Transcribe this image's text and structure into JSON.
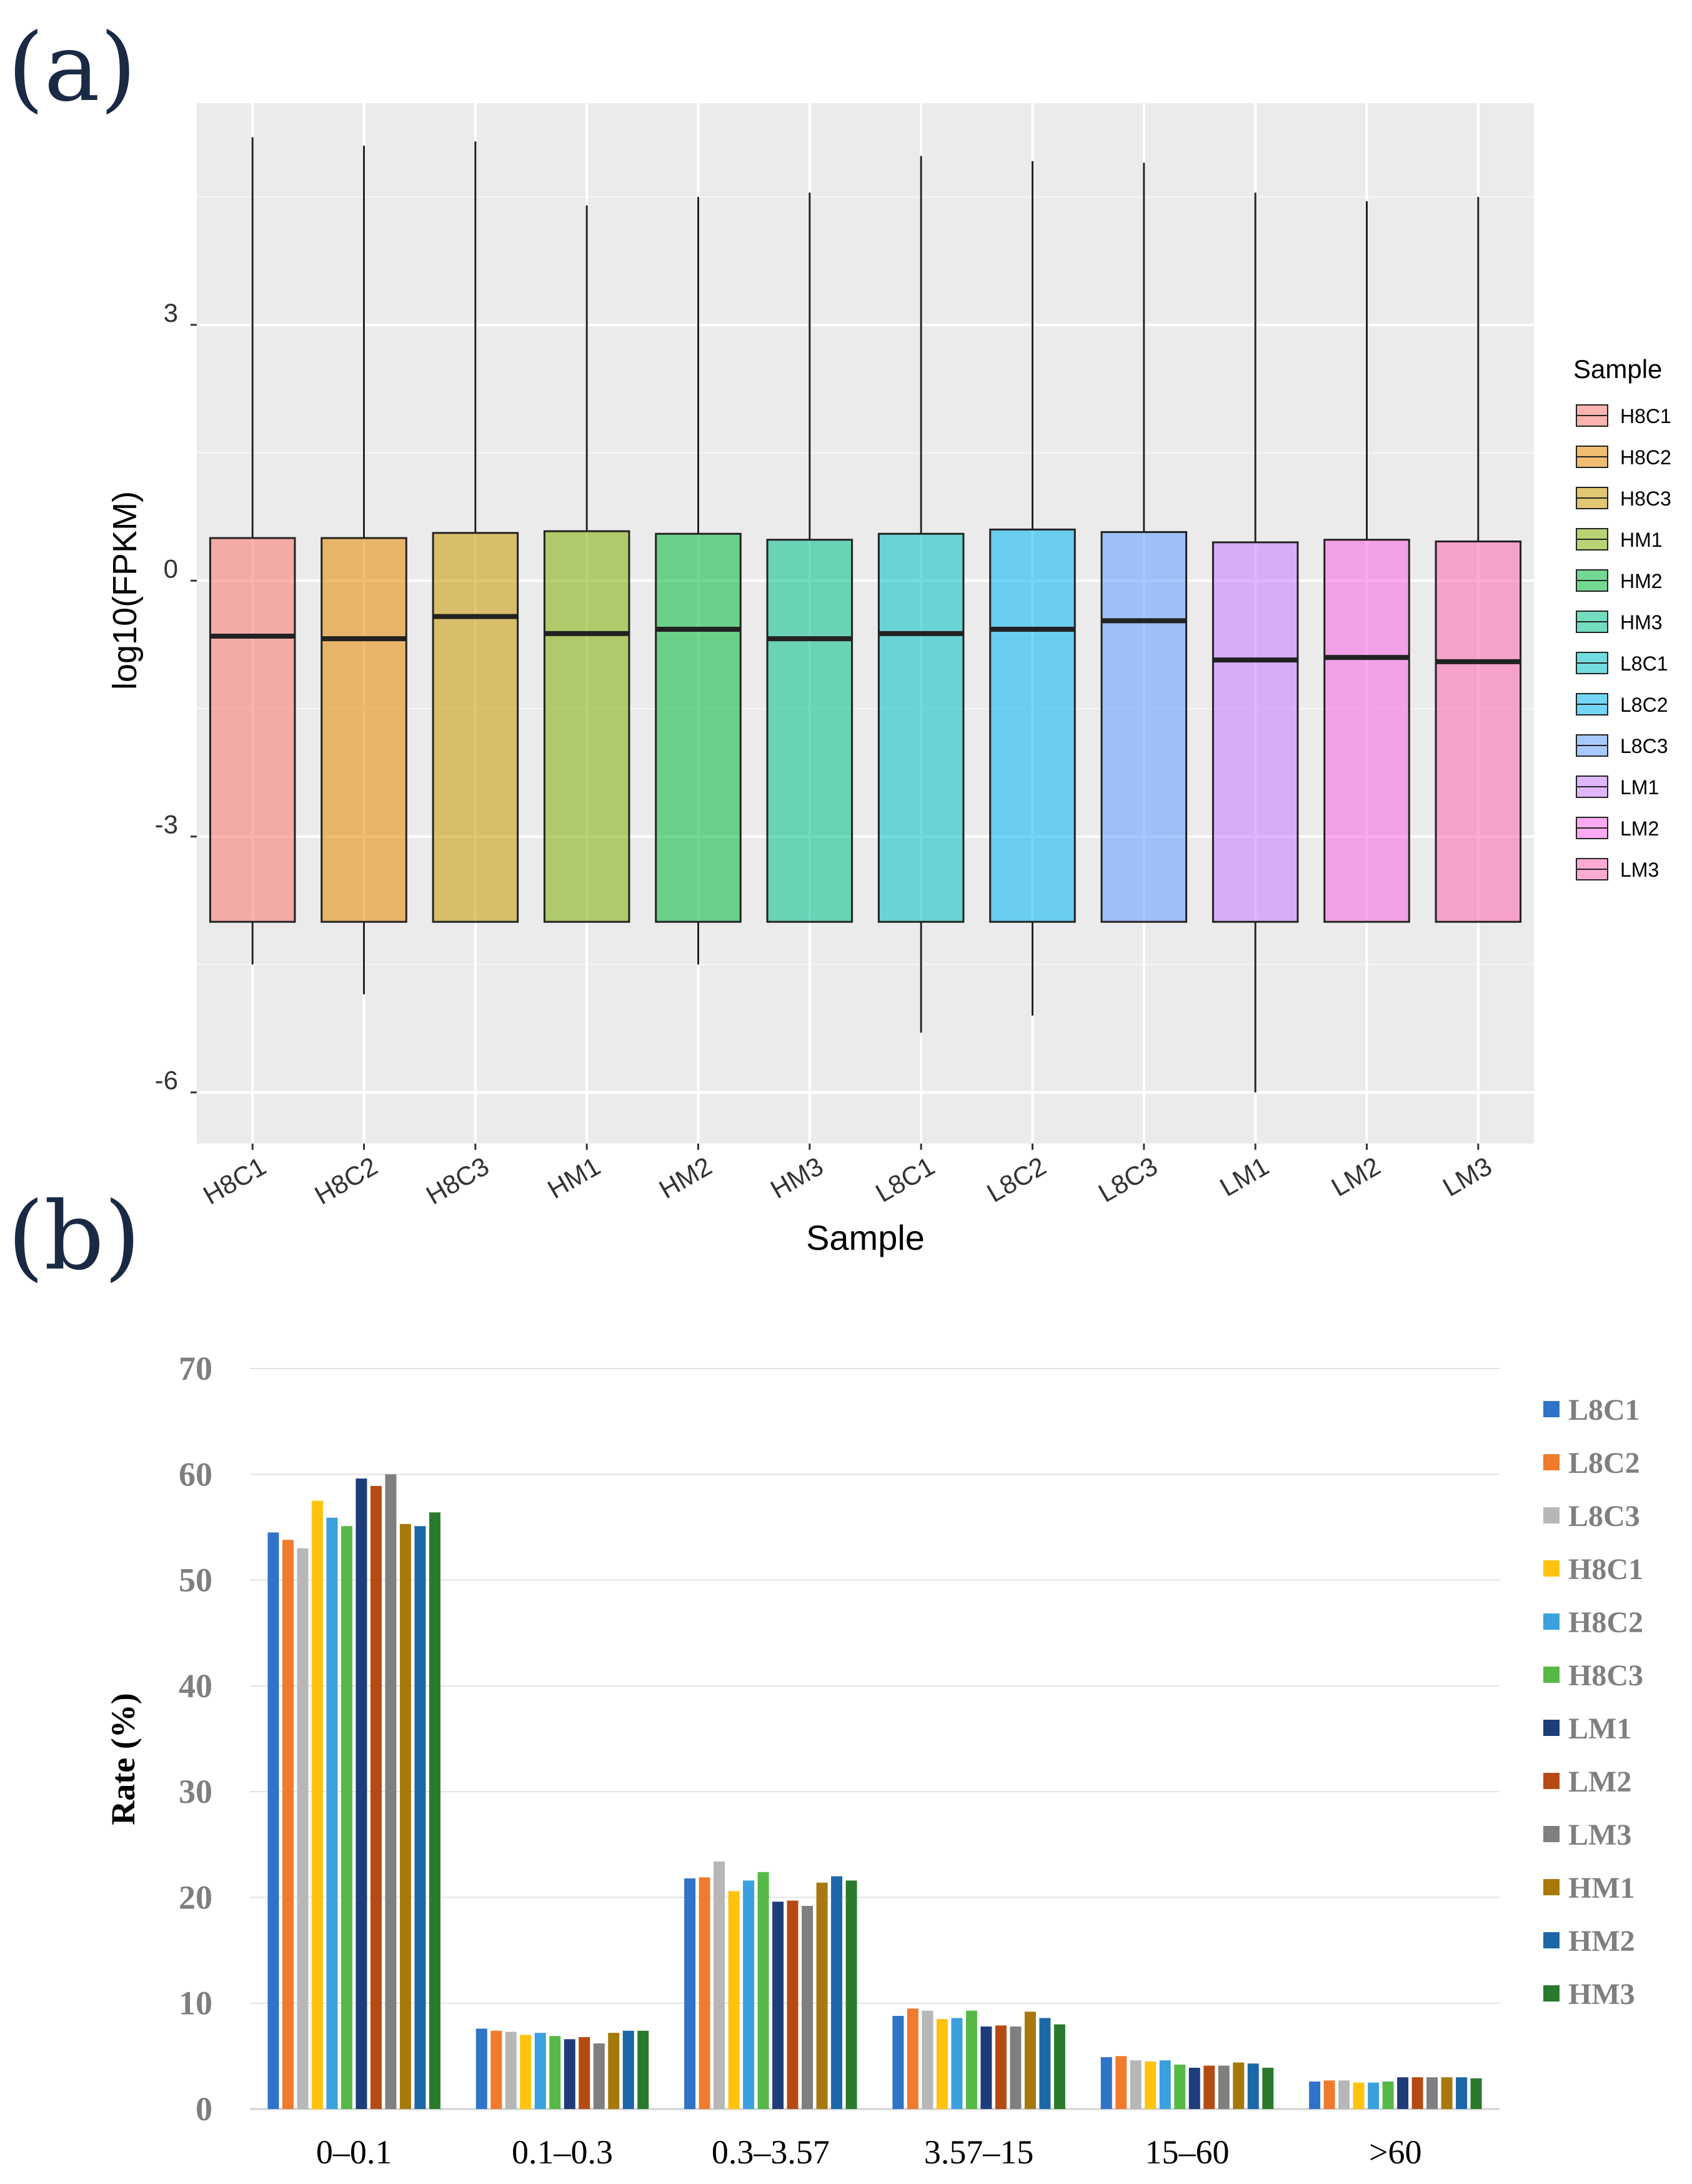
{
  "chart_data": [
    {
      "panel_label": "(a)",
      "type": "box",
      "xlabel": "Sample",
      "ylabel": "log10(FPKM)",
      "yticks": [
        "3",
        "0",
        "-3",
        "-6"
      ],
      "ylim": [
        -6.6,
        5.6
      ],
      "legend_title": "Sample",
      "legend_position": "right",
      "series": [
        {
          "name": "H8C1",
          "color": "#F8766D",
          "whisker_low": -4.5,
          "q1": -4.0,
          "median": -0.65,
          "q3": 0.5,
          "whisker_high": 5.2
        },
        {
          "name": "H8C2",
          "color": "#E58700",
          "whisker_low": -4.85,
          "q1": -4.0,
          "median": -0.68,
          "q3": 0.5,
          "whisker_high": 5.1
        },
        {
          "name": "H8C3",
          "color": "#C99800",
          "whisker_low": -4.0,
          "q1": -4.0,
          "median": -0.42,
          "q3": 0.56,
          "whisker_high": 5.15
        },
        {
          "name": "HM1",
          "color": "#7CAE00",
          "whisker_low": -4.0,
          "q1": -4.0,
          "median": -0.62,
          "q3": 0.58,
          "whisker_high": 4.4
        },
        {
          "name": "HM2",
          "color": "#00BA38",
          "whisker_low": -4.5,
          "q1": -4.0,
          "median": -0.57,
          "q3": 0.55,
          "whisker_high": 4.5
        },
        {
          "name": "HM3",
          "color": "#00C08B",
          "whisker_low": -4.0,
          "q1": -4.0,
          "median": -0.68,
          "q3": 0.48,
          "whisker_high": 4.55
        },
        {
          "name": "L8C1",
          "color": "#00BFC4",
          "whisker_low": -5.3,
          "q1": -4.0,
          "median": -0.62,
          "q3": 0.55,
          "whisker_high": 4.98
        },
        {
          "name": "L8C2",
          "color": "#00B4F0",
          "whisker_low": -5.1,
          "q1": -4.0,
          "median": -0.57,
          "q3": 0.6,
          "whisker_high": 4.92
        },
        {
          "name": "L8C3",
          "color": "#619CFF",
          "whisker_low": -4.0,
          "q1": -4.0,
          "median": -0.47,
          "q3": 0.57,
          "whisker_high": 4.9
        },
        {
          "name": "LM1",
          "color": "#C77CFF",
          "whisker_low": -6.0,
          "q1": -4.0,
          "median": -0.93,
          "q3": 0.45,
          "whisker_high": 4.55
        },
        {
          "name": "LM2",
          "color": "#F564E3",
          "whisker_low": -4.0,
          "q1": -4.0,
          "median": -0.9,
          "q3": 0.48,
          "whisker_high": 4.45
        },
        {
          "name": "LM3",
          "color": "#FF64B0",
          "whisker_low": -4.0,
          "q1": -4.0,
          "median": -0.95,
          "q3": 0.46,
          "whisker_high": 4.5
        }
      ]
    },
    {
      "panel_label": "(b)",
      "type": "bar",
      "xlabel": "",
      "ylabel": "Rate (%)",
      "ylim": [
        0,
        70
      ],
      "yticks": [
        "0",
        "10",
        "20",
        "30",
        "40",
        "50",
        "60",
        "70"
      ],
      "legend_position": "right",
      "categories": [
        "0–0.1",
        "0.1–0.3",
        "0.3–3.57",
        "3.57–15",
        "15–60",
        ">60"
      ],
      "series": [
        {
          "name": "L8C1",
          "color": "#2F74C8",
          "values": [
            54.5,
            7.6,
            21.8,
            8.8,
            4.9,
            2.6
          ]
        },
        {
          "name": "L8C2",
          "color": "#F07B2D",
          "values": [
            53.8,
            7.4,
            21.9,
            9.5,
            5.0,
            2.7
          ]
        },
        {
          "name": "L8C3",
          "color": "#B7B7B7",
          "values": [
            53.0,
            7.3,
            23.4,
            9.3,
            4.6,
            2.7
          ]
        },
        {
          "name": "H8C1",
          "color": "#FFC20E",
          "values": [
            57.5,
            7.0,
            20.6,
            8.5,
            4.5,
            2.5
          ]
        },
        {
          "name": "H8C2",
          "color": "#3BA0DE",
          "values": [
            55.9,
            7.2,
            21.6,
            8.6,
            4.6,
            2.5
          ]
        },
        {
          "name": "H8C3",
          "color": "#56B947",
          "values": [
            55.1,
            6.9,
            22.4,
            9.3,
            4.2,
            2.6
          ]
        },
        {
          "name": "LM1",
          "color": "#1E3C7A",
          "values": [
            59.6,
            6.6,
            19.6,
            7.8,
            3.9,
            3.0
          ]
        },
        {
          "name": "LM2",
          "color": "#B54B13",
          "values": [
            58.9,
            6.8,
            19.7,
            7.9,
            4.1,
            3.0
          ]
        },
        {
          "name": "LM3",
          "color": "#7F7F7F",
          "values": [
            60.0,
            6.2,
            19.2,
            7.8,
            4.1,
            3.0
          ]
        },
        {
          "name": "HM1",
          "color": "#A7780B",
          "values": [
            55.3,
            7.2,
            21.4,
            9.2,
            4.4,
            3.0
          ]
        },
        {
          "name": "HM2",
          "color": "#1C67A8",
          "values": [
            55.1,
            7.4,
            22.0,
            8.6,
            4.3,
            3.0
          ]
        },
        {
          "name": "HM3",
          "color": "#2A7A2D",
          "values": [
            56.4,
            7.4,
            21.6,
            8.0,
            3.9,
            2.9
          ]
        }
      ]
    }
  ]
}
